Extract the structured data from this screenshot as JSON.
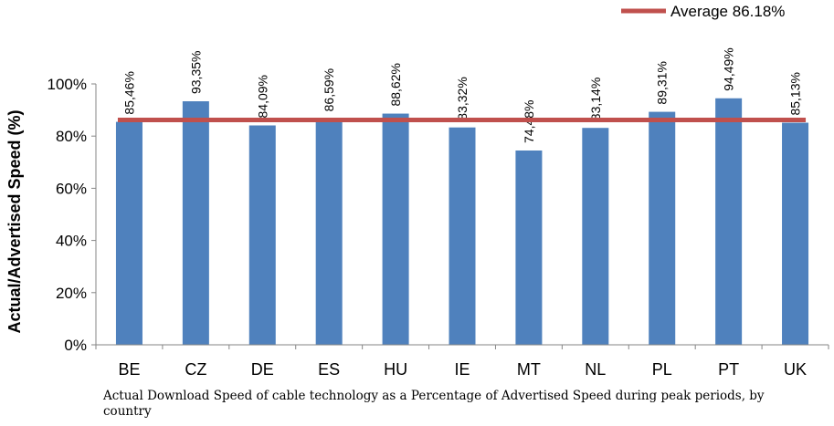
{
  "chart_data": {
    "type": "bar",
    "categories": [
      "BE",
      "CZ",
      "DE",
      "ES",
      "HU",
      "IE",
      "MT",
      "NL",
      "PL",
      "PT",
      "UK"
    ],
    "values": [
      85.46,
      93.35,
      84.09,
      86.59,
      88.62,
      83.32,
      74.48,
      83.14,
      89.31,
      94.49,
      85.13
    ],
    "data_labels": [
      "85,46%",
      "93,35%",
      "84,09%",
      "86,59%",
      "88,62%",
      "83,32%",
      "74,48%",
      "83,14%",
      "89,31%",
      "94,49%",
      "85,13%"
    ],
    "average": 86.18,
    "legend_label": "Average 86.18%",
    "ylabel": "Actual/Advertised Speed (%)",
    "xlabel": "",
    "ylim": [
      0,
      100
    ],
    "yticks": [
      "0%",
      "20%",
      "40%",
      "60%",
      "80%",
      "100%"
    ],
    "grid": false,
    "legend_position": "top-right",
    "bar_color": "#4F81BD",
    "average_line_color": "#C0504D"
  },
  "caption": "Actual Download Speed of cable technology as a Percentage of Advertised Speed during peak periods, by country"
}
